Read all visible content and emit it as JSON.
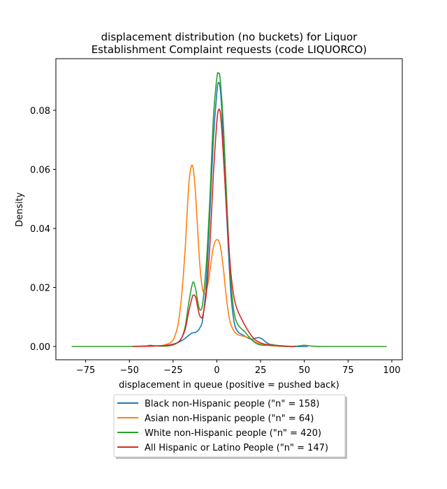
{
  "chart_data": {
    "type": "line",
    "title_lines": [
      "displacement distribution (no buckets)  for Liquor",
      "Establishment Complaint requests (code LIQUORCO)"
    ],
    "xlabel": "displacement in queue (positive = pushed back)",
    "ylabel": "Density",
    "xlim": [
      -92,
      106
    ],
    "ylim": [
      -0.0045,
      0.0975
    ],
    "xticks": [
      -75,
      -50,
      -25,
      0,
      25,
      50,
      75,
      100
    ],
    "xtick_labels": [
      "−75",
      "−50",
      "−25",
      "0",
      "25",
      "50",
      "75",
      "100"
    ],
    "yticks": [
      0.0,
      0.02,
      0.04,
      0.06,
      0.08
    ],
    "ytick_labels": [
      "0.00",
      "0.02",
      "0.04",
      "0.06",
      "0.08"
    ],
    "grid": false,
    "legend_position": "below plot, centered",
    "series": [
      {
        "name": "Black non-Hispanic people (\"n\" = 158)",
        "color": "#1f77b4",
        "x": [
          -48,
          -40,
          -35,
          -30,
          -25,
          -22,
          -20,
          -18,
          -16,
          -14,
          -12,
          -10,
          -8,
          -6,
          -4,
          -2,
          0,
          1,
          2,
          3,
          4,
          6,
          8,
          10,
          12,
          14,
          16,
          18,
          20,
          22,
          24,
          26,
          28,
          30,
          35,
          40,
          45,
          50,
          52
        ],
        "y": [
          0,
          0.0001,
          0.0002,
          0.0003,
          0.0008,
          0.0014,
          0.002,
          0.0028,
          0.0038,
          0.0046,
          0.0048,
          0.006,
          0.0095,
          0.022,
          0.045,
          0.07,
          0.086,
          0.0895,
          0.087,
          0.078,
          0.064,
          0.04,
          0.018,
          0.008,
          0.005,
          0.0042,
          0.0035,
          0.0028,
          0.0025,
          0.0028,
          0.003,
          0.0025,
          0.0015,
          0.0008,
          0.0003,
          0.0001,
          0,
          0,
          0
        ]
      },
      {
        "name": "Asian non-Hispanic people (\"n\" = 64)",
        "color": "#ff7f0e",
        "x": [
          -42,
          -38,
          -34,
          -30,
          -26,
          -24,
          -22,
          -20,
          -18,
          -17,
          -16,
          -15,
          -14,
          -13,
          -12,
          -11,
          -10,
          -9,
          -8,
          -7,
          -6,
          -5,
          -4,
          -3,
          -2,
          -1,
          0,
          1,
          2,
          3,
          4,
          5,
          6,
          7,
          8,
          10,
          12,
          15,
          18,
          20,
          22,
          25,
          28,
          30,
          35,
          40
        ],
        "y": [
          0,
          0.0001,
          0.0002,
          0.0005,
          0.0015,
          0.0035,
          0.008,
          0.018,
          0.034,
          0.045,
          0.055,
          0.06,
          0.0614,
          0.058,
          0.05,
          0.04,
          0.03,
          0.023,
          0.019,
          0.018,
          0.019,
          0.0215,
          0.0255,
          0.03,
          0.0335,
          0.0355,
          0.0362,
          0.0358,
          0.034,
          0.03,
          0.025,
          0.019,
          0.014,
          0.01,
          0.0075,
          0.005,
          0.004,
          0.0035,
          0.003,
          0.0025,
          0.0015,
          0.0008,
          0.0005,
          0.0003,
          0.0001,
          0
        ]
      },
      {
        "name": "White non-Hispanic people (\"n\" = 420)",
        "color": "#2ca02c",
        "x": [
          -83,
          -70,
          -60,
          -50,
          -45,
          -40,
          -38,
          -35,
          -30,
          -25,
          -22,
          -20,
          -18,
          -16,
          -14,
          -13,
          -12,
          -11,
          -10,
          -9,
          -8,
          -6,
          -4,
          -2,
          0,
          1,
          2,
          4,
          6,
          8,
          10,
          12,
          14,
          16,
          18,
          20,
          22,
          25,
          28,
          30,
          32,
          35,
          40,
          45,
          50,
          52,
          55,
          60,
          70,
          80,
          90,
          97
        ],
        "y": [
          0,
          0,
          0,
          0,
          0.0001,
          0.0002,
          0.0004,
          0.0002,
          0.0001,
          0.0005,
          0.0015,
          0.003,
          0.007,
          0.015,
          0.0212,
          0.0215,
          0.019,
          0.0155,
          0.0128,
          0.0125,
          0.015,
          0.028,
          0.05,
          0.077,
          0.091,
          0.0925,
          0.09,
          0.072,
          0.045,
          0.022,
          0.011,
          0.0075,
          0.006,
          0.005,
          0.0035,
          0.0022,
          0.0012,
          0.0005,
          0.0004,
          0.0007,
          0.0006,
          0.0002,
          0,
          0.0001,
          0.0004,
          0.0003,
          0.0001,
          0,
          0,
          0,
          0,
          0
        ]
      },
      {
        "name": "All Hispanic or Latino People (\"n\" = 147)",
        "color": "#d62728",
        "x": [
          -48,
          -40,
          -35,
          -30,
          -25,
          -22,
          -20,
          -18,
          -16,
          -14,
          -13,
          -12,
          -11,
          -10,
          -9,
          -8,
          -6,
          -4,
          -2,
          0,
          1,
          2,
          3,
          4,
          6,
          8,
          10,
          12,
          14,
          16,
          18,
          20,
          22,
          25,
          28,
          30,
          35,
          40,
          45
        ],
        "y": [
          0,
          0.0001,
          0.0002,
          0.0003,
          0.0007,
          0.0015,
          0.003,
          0.006,
          0.012,
          0.0168,
          0.0174,
          0.0165,
          0.0135,
          0.0108,
          0.0098,
          0.0105,
          0.018,
          0.034,
          0.058,
          0.076,
          0.0802,
          0.079,
          0.072,
          0.062,
          0.042,
          0.025,
          0.016,
          0.012,
          0.0095,
          0.0072,
          0.0052,
          0.0035,
          0.0022,
          0.0012,
          0.0007,
          0.0005,
          0.0003,
          0.0001,
          0
        ]
      }
    ]
  }
}
